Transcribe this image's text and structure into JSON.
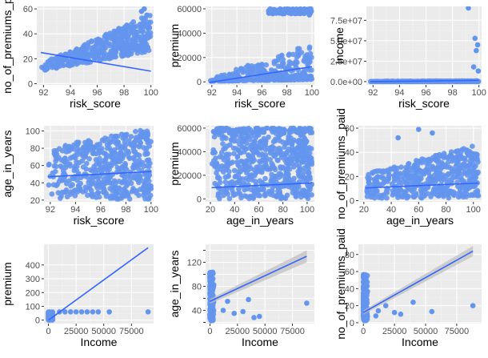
{
  "colors": {
    "panel_bg": "#ebebeb",
    "grid_major": "#ffffff",
    "grid_minor": "#f4f4f4",
    "point": "#6495ed",
    "line": "#3366ff",
    "band": "#bdbdbd"
  },
  "chart_data": [
    {
      "type": "scatter",
      "xlabel": "risk_score",
      "ylabel": "no_of_premiums_p",
      "xlim": [
        91.5,
        100.2
      ],
      "ylim": [
        -1,
        62
      ],
      "xticks": [
        92,
        94,
        96,
        98,
        100
      ],
      "yticks": [
        0,
        20,
        40,
        60
      ],
      "xtick_labels": [
        "92",
        "94",
        "96",
        "98",
        "100"
      ],
      "ytick_labels": [
        "0",
        "20",
        "40",
        "60"
      ],
      "trend": {
        "x": [
          91.8,
          100
        ],
        "y": [
          25,
          10
        ]
      },
      "points_model": {
        "x_range": [
          91.8,
          100
        ],
        "y_base": [
          10,
          26
        ],
        "y_spread": [
          6,
          30
        ],
        "count": 450
      },
      "outliers": {
        "x": [
          99.3,
          99.7,
          99.5
        ],
        "y": [
          58,
          55,
          60
        ]
      }
    },
    {
      "type": "scatter",
      "xlabel": "risk_score",
      "ylabel": "premium",
      "xlim": [
        91.5,
        100.2
      ],
      "ylim": [
        -2500,
        62000
      ],
      "xticks": [
        92,
        94,
        96,
        98,
        100
      ],
      "yticks": [
        0,
        20000,
        40000,
        60000
      ],
      "xtick_labels": [
        "92",
        "94",
        "96",
        "98",
        "100"
      ],
      "ytick_labels": [
        "0",
        "20000",
        "40000",
        "60000"
      ],
      "trend": {
        "x": [
          91.8,
          100
        ],
        "y": [
          -500,
          12500
        ]
      },
      "points_model": {
        "x_range": [
          91.8,
          100
        ],
        "y_base": [
          500,
          2000
        ],
        "y_spread": [
          2000,
          30000
        ],
        "count": 350
      },
      "outliers": {
        "x": [
          99.9,
          99.8,
          99.95
        ],
        "y": [
          60000,
          55000,
          58000
        ]
      }
    },
    {
      "type": "scatter",
      "xlabel": "risk_score",
      "ylabel": "Income",
      "xlim": [
        91.5,
        100.2
      ],
      "ylim": [
        -4000000,
        92000000
      ],
      "xticks": [
        92,
        94,
        96,
        98,
        100
      ],
      "yticks": [
        0,
        25000000,
        50000000,
        75000000
      ],
      "xtick_labels": [
        "92",
        "94",
        "96",
        "98",
        "100"
      ],
      "ytick_labels": [
        "0.0e+00",
        "2.5e+07",
        "5.0e+07",
        "7.5e+07"
      ],
      "trend": {
        "x": [
          91.8,
          100
        ],
        "y": [
          0,
          1500000
        ]
      },
      "points_model": {
        "x_range": [
          91.8,
          100
        ],
        "y_base": [
          100000,
          200000
        ],
        "y_spread": [
          300000,
          800000
        ],
        "count": 300
      },
      "outliers": {
        "x": [
          99.2,
          99.7,
          99.9,
          99.8,
          99.6,
          99.95
        ],
        "y": [
          90000000,
          53000000,
          45000000,
          38000000,
          18000000,
          13000000
        ]
      }
    },
    {
      "type": "scatter",
      "xlabel": "risk_score",
      "ylabel": "age_in_years",
      "xlim": [
        91.5,
        100.2
      ],
      "ylim": [
        18,
        106
      ],
      "xticks": [
        92,
        94,
        96,
        98,
        100
      ],
      "yticks": [
        20,
        40,
        60,
        80,
        100
      ],
      "xtick_labels": [
        "92",
        "94",
        "96",
        "98",
        "100"
      ],
      "ytick_labels": [
        "20",
        "40",
        "60",
        "80",
        "100"
      ],
      "trend": {
        "x": [
          91.8,
          100
        ],
        "y": [
          47,
          53
        ]
      },
      "points_model": {
        "x_range": [
          91.8,
          100
        ],
        "y_base": [
          21,
          21
        ],
        "y_spread": [
          60,
          82
        ],
        "count": 500
      },
      "outliers": {
        "x": [],
        "y": []
      }
    },
    {
      "type": "scatter",
      "xlabel": "age_in_years",
      "ylabel": "premium",
      "xlim": [
        16,
        106
      ],
      "ylim": [
        -2500,
        62000
      ],
      "xticks": [
        20,
        40,
        60,
        80,
        100
      ],
      "yticks": [
        0,
        20000,
        40000,
        60000
      ],
      "xtick_labels": [
        "20",
        "40",
        "60",
        "80",
        "100"
      ],
      "ytick_labels": [
        "0",
        "20000",
        "40000",
        "60000"
      ],
      "trend": {
        "x": [
          21,
          104
        ],
        "y": [
          9500,
          13500
        ]
      },
      "points_model": {
        "x_range": [
          21,
          104
        ],
        "y_base": [
          0,
          0
        ],
        "y_spread": [
          60000,
          60000
        ],
        "count": 600
      },
      "outliers": {
        "x": [],
        "y": []
      }
    },
    {
      "type": "scatter",
      "xlabel": "age_in_years",
      "ylabel": "no_of_premiums_paid",
      "xlim": [
        16,
        106
      ],
      "ylim": [
        -1,
        62
      ],
      "xticks": [
        20,
        40,
        60,
        80,
        100
      ],
      "yticks": [
        0,
        20,
        40,
        60
      ],
      "xtick_labels": [
        "20",
        "40",
        "60",
        "80",
        "100"
      ],
      "ytick_labels": [
        "0",
        "20",
        "40",
        "60"
      ],
      "trend": {
        "x": [
          21,
          104
        ],
        "y": [
          10.5,
          14.5
        ]
      },
      "points_model": {
        "x_range": [
          21,
          104
        ],
        "y_base": [
          2,
          2
        ],
        "y_spread": [
          20,
          45
        ],
        "count": 500
      },
      "outliers": {
        "x": [
          60,
          45,
          70
        ],
        "y": [
          59,
          52,
          56
        ]
      }
    },
    {
      "type": "scatter",
      "xlabel": "Income",
      "ylabel": "premium",
      "xlim": [
        -4000,
        95000
      ],
      "ylim": [
        -25,
        550
      ],
      "xticks": [
        0,
        25000,
        50000,
        75000
      ],
      "yticks": [
        0,
        100,
        200,
        300,
        400
      ],
      "xtick_labels": [
        "0",
        "25000",
        "50000",
        "75000"
      ],
      "ytick_labels": [
        "0",
        "100",
        "200",
        "300",
        "400"
      ],
      "trend": {
        "x": [
          0,
          90000
        ],
        "y": [
          0,
          525
        ]
      },
      "points_model": {
        "x_range": [
          0,
          4000
        ],
        "y_base": [
          0,
          0
        ],
        "y_spread": [
          60,
          60
        ],
        "count": 150
      },
      "outliers": {
        "x": [
          10000,
          15000,
          20000,
          25000,
          30000,
          35000,
          40000,
          45000,
          55000,
          90000
        ],
        "y": [
          60,
          60,
          60,
          60,
          60,
          60,
          60,
          60,
          60,
          60
        ]
      }
    },
    {
      "type": "scatter",
      "xlabel": "Income",
      "ylabel": "age_in_years",
      "xlim": [
        -4000,
        95000
      ],
      "ylim": [
        18,
        150
      ],
      "xticks": [
        0,
        25000,
        50000,
        75000
      ],
      "yticks": [
        20,
        40,
        60,
        80,
        100,
        120,
        140
      ],
      "xtick_labels": [
        "0",
        "25000",
        "50000",
        "75000"
      ],
      "ytick_labels": [
        "",
        "40",
        "",
        "80",
        "",
        "120",
        ""
      ],
      "trend": {
        "x": [
          0,
          88000
        ],
        "y": [
          55,
          130
        ]
      },
      "band_width": 10,
      "points_model": {
        "x_range": [
          0,
          3500
        ],
        "y_base": [
          22,
          22
        ],
        "y_spread": [
          82,
          82
        ],
        "count": 180
      },
      "outliers": {
        "x": [
          12000,
          16000,
          22000,
          30000,
          35000,
          40000,
          45000,
          88000
        ],
        "y": [
          40,
          55,
          35,
          38,
          58,
          28,
          30,
          52
        ]
      }
    },
    {
      "type": "scatter",
      "xlabel": "Income",
      "ylabel": "no_of_premiums_paid",
      "xlim": [
        -4000,
        95000
      ],
      "ylim": [
        -1,
        92
      ],
      "xticks": [
        0,
        25000,
        50000,
        75000
      ],
      "yticks": [
        0,
        20,
        40,
        60,
        80
      ],
      "xtick_labels": [
        "0",
        "25000",
        "50000",
        "75000"
      ],
      "ytick_labels": [
        "0",
        "20",
        "40",
        "60",
        "80"
      ],
      "trend": {
        "x": [
          0,
          88000
        ],
        "y": [
          12,
          84
        ]
      },
      "band_width": 6,
      "points_model": {
        "x_range": [
          0,
          3500
        ],
        "y_base": [
          2,
          2
        ],
        "y_spread": [
          55,
          55
        ],
        "count": 180
      },
      "outliers": {
        "x": [
          10000,
          12000,
          18000,
          25000,
          30000,
          40000,
          55000,
          88000
        ],
        "y": [
          8,
          14,
          20,
          12,
          10,
          24,
          13,
          20
        ]
      }
    }
  ]
}
